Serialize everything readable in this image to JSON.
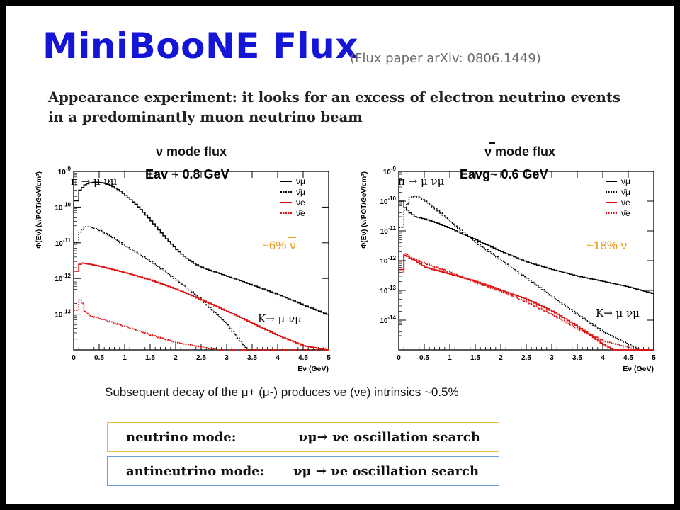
{
  "title": "MiniBooNE Flux",
  "subtitle": "(Flux paper arXiv: 0806.1449)",
  "intro_line1": "Appearance experiment: it looks for an excess of electron neutrino events",
  "intro_line2": "in a predominantly muon neutrino beam",
  "subsequent_text": "Subsequent decay of the μ+ (μ-) produces νe (νe) intrinsics ~0.5%",
  "boxes": {
    "neutrino_label": "neutrino mode:",
    "neutrino_rhs": "νμ→ νe oscillation search",
    "antineutrino_label": "antineutrino mode:",
    "antineutrino_rhs": "νμ → νe oscillation search"
  },
  "colors": {
    "title": "#1515d8",
    "note": "#e89a1e",
    "red": "#e01010",
    "box_yellow": "#e8c030",
    "box_blue": "#6aa0d8"
  },
  "chart_data": [
    {
      "type": "line",
      "title": "ν mode flux",
      "energy_label": "Eav ~ 0.8 GeV",
      "decay_labels": [
        "π → μ νμ",
        "K→ μ νμ"
      ],
      "note": "~6% ν",
      "xlabel": "Eν (GeV)",
      "ylabel": "Φ(Eν) (ν/POT/GeV/cm²)",
      "xlim": [
        0,
        5
      ],
      "ylim": [
        1e-14,
        1e-09
      ],
      "log_y": true,
      "x_ticks": [
        "0",
        "0.5",
        "1",
        "1.5",
        "2",
        "2.5",
        "3",
        "3.5",
        "4",
        "4.5",
        "5"
      ],
      "y_ticks": [
        "10^-9",
        "10^-10",
        "10^-11",
        "10^-12",
        "10^-13"
      ],
      "legend": [
        "νμ",
        "ν̄μ",
        "νe",
        "ν̄e"
      ],
      "legend_position": "top-right",
      "series": [
        {
          "name": "νμ",
          "style": "solid",
          "color": "#000000",
          "x": [
            0.05,
            0.1,
            0.2,
            0.3,
            0.4,
            0.5,
            0.6,
            0.7,
            0.8,
            0.9,
            1.0,
            1.2,
            1.4,
            1.6,
            1.8,
            2.0,
            2.2,
            2.4,
            2.6,
            2.8,
            3.0,
            3.5,
            4.0,
            4.5,
            4.95
          ],
          "y": [
            1.5e-10,
            3e-10,
            4.2e-10,
            4.8e-10,
            5e-10,
            4.9e-10,
            4.6e-10,
            4.1e-10,
            3.4e-10,
            2.8e-10,
            2.1e-10,
            1.2e-10,
            6e-11,
            2.8e-11,
            1.3e-11,
            6.5e-12,
            3.6e-12,
            2.4e-12,
            1.8e-12,
            1.45e-12,
            1.15e-12,
            6.5e-13,
            3.5e-13,
            1.8e-13,
            1e-13
          ]
        },
        {
          "name": "ν̄μ",
          "style": "dashed",
          "color": "#000000",
          "x": [
            0.05,
            0.1,
            0.2,
            0.3,
            0.4,
            0.5,
            0.75,
            1.0,
            1.5,
            2.0,
            2.5,
            3.0,
            3.3,
            3.4
          ],
          "y": [
            1e-11,
            2e-11,
            2.8e-11,
            2.8e-11,
            2.5e-11,
            2.2e-11,
            1.4e-11,
            8e-12,
            3e-12,
            9e-13,
            2.5e-13,
            5e-14,
            1.4e-14,
            1e-14
          ]
        },
        {
          "name": "νe",
          "style": "solid",
          "color": "#e01010",
          "x": [
            0.05,
            0.1,
            0.15,
            0.3,
            0.5,
            1.0,
            1.5,
            2.0,
            2.5,
            3.0,
            3.5,
            4.0,
            4.5,
            4.95
          ],
          "y": [
            1.6e-12,
            2.5e-12,
            2.7e-12,
            2.5e-12,
            2.2e-12,
            1.45e-12,
            9e-13,
            5e-13,
            2.5e-13,
            1.2e-13,
            5.5e-14,
            2.5e-14,
            1.3e-14,
            1e-14
          ]
        },
        {
          "name": "ν̄e",
          "style": "dashed",
          "color": "#e01010",
          "x": [
            0.05,
            0.1,
            0.15,
            0.2,
            0.3,
            0.5,
            1.0,
            1.5,
            2.0,
            2.5,
            2.8,
            2.9
          ],
          "y": [
            1.3e-13,
            2.5e-13,
            2e-13,
            1.2e-13,
            9e-14,
            7.5e-14,
            4.5e-14,
            2.6e-14,
            1.6e-14,
            1.2e-14,
            1e-14,
            1e-14
          ]
        }
      ]
    },
    {
      "type": "line",
      "title": "ν mode flux",
      "title_overbar": true,
      "energy_label": "Eavg~ 0.6 GeV",
      "decay_labels": [
        "π → μ νμ",
        "K→ μ νμ"
      ],
      "note": "~18% ν",
      "xlabel": "Eν (GeV)",
      "ylabel": "Φ(Eν) (ν/POT/GeV/cm²)",
      "xlim": [
        0,
        5
      ],
      "ylim": [
        1e-15,
        1e-09
      ],
      "log_y": true,
      "x_ticks": [
        "0",
        "0.5",
        "1",
        "1.5",
        "2",
        "2.5",
        "3",
        "3.5",
        "4",
        "4.5",
        "5"
      ],
      "y_ticks": [
        "10^-9",
        "10^-10",
        "10^-11",
        "10^-12",
        "10^-13",
        "10^-14"
      ],
      "legend": [
        "νμ",
        "ν̄μ",
        "νe",
        "ν̄e"
      ],
      "legend_position": "top-right",
      "series": [
        {
          "name": "νμ",
          "style": "solid",
          "color": "#000000",
          "x": [
            0.05,
            0.1,
            0.15,
            0.2,
            0.3,
            0.5,
            0.75,
            1.0,
            1.5,
            2.0,
            2.5,
            3.0,
            3.5,
            4.0,
            4.5,
            4.95
          ],
          "y": [
            1e-10,
            6e-11,
            5e-11,
            4e-11,
            3e-11,
            2.5e-11,
            1.8e-11,
            1.2e-11,
            5e-12,
            2e-12,
            9e-13,
            5e-13,
            3e-13,
            2e-13,
            1.3e-13,
            8e-14
          ]
        },
        {
          "name": "ν̄μ",
          "style": "dashed",
          "color": "#000000",
          "x": [
            0.05,
            0.1,
            0.2,
            0.3,
            0.4,
            0.5,
            0.6,
            0.8,
            1.0,
            1.5,
            2.0,
            2.5,
            3.0,
            3.5,
            4.0,
            4.5,
            4.7
          ],
          "y": [
            1.3e-11,
            5e-11,
            1.3e-10,
            1.5e-10,
            1.3e-10,
            1e-10,
            7.5e-11,
            4e-11,
            2e-11,
            4e-12,
            1e-12,
            2.5e-13,
            6e-14,
            1.5e-14,
            4e-15,
            1.5e-15,
            1e-15
          ]
        },
        {
          "name": "νe",
          "style": "solid",
          "color": "#e01010",
          "x": [
            0.05,
            0.1,
            0.15,
            0.2,
            0.3,
            0.5,
            1.0,
            1.5,
            2.0,
            2.5,
            3.0,
            3.5,
            4.0,
            4.2
          ],
          "y": [
            5e-13,
            1.5e-12,
            1.4e-12,
            1.2e-12,
            1e-12,
            6e-13,
            3.5e-13,
            2e-13,
            1e-13,
            5e-14,
            2e-14,
            6e-15,
            1.5e-15,
            1e-15
          ]
        },
        {
          "name": "ν̄e",
          "style": "dashed",
          "color": "#e01010",
          "x": [
            0.05,
            0.1,
            0.15,
            0.2,
            0.3,
            0.5,
            1.0,
            1.5,
            2.0,
            2.5,
            3.0,
            3.5,
            4.0,
            4.5,
            4.7
          ],
          "y": [
            4e-13,
            1.7e-12,
            1.6e-12,
            1.3e-12,
            1.1e-12,
            8e-13,
            4e-13,
            1.8e-13,
            9e-14,
            4e-14,
            1.5e-14,
            5e-15,
            2e-15,
            1.2e-15,
            1e-15
          ]
        }
      ]
    }
  ]
}
